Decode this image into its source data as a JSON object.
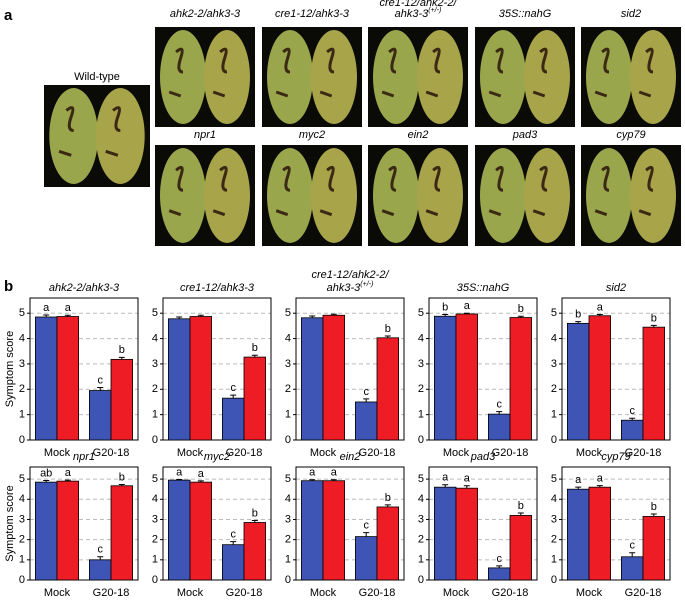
{
  "panel_a": {
    "label": "a",
    "wild_type": "Wild-type",
    "photos": [
      {
        "lines": [
          "ahk2-2/ahk3-3"
        ]
      },
      {
        "lines": [
          "cre1-12/ahk3-3"
        ]
      },
      {
        "lines": [
          "cre1-12/ahk2-2/",
          "ahk3-3"
        ],
        "sup": "(+/-)"
      },
      {
        "lines": [
          "35S::nahG"
        ]
      },
      {
        "lines": [
          "sid2"
        ]
      },
      {
        "lines": [
          "npr1"
        ]
      },
      {
        "lines": [
          "myc2"
        ]
      },
      {
        "lines": [
          "ein2"
        ]
      },
      {
        "lines": [
          "pad3"
        ]
      },
      {
        "lines": [
          "cyp79"
        ]
      }
    ]
  },
  "panel_b_label": "b",
  "chart_data": [
    {
      "type": "bar",
      "title": [
        "ahk2-2/ahk3-3"
      ],
      "ylabel": "Symptom score",
      "categories": [
        "Mock",
        "G20-18"
      ],
      "ylim": [
        0,
        5.6
      ],
      "yticks": [
        0,
        1,
        2,
        3,
        4,
        5
      ],
      "grid": true,
      "series": [
        {
          "color": "#3f55b5",
          "values": [
            4.85,
            1.95
          ],
          "errors": [
            0.08,
            0.12
          ],
          "letters": [
            "a",
            "c"
          ]
        },
        {
          "color": "#ee1c24",
          "values": [
            4.87,
            3.18
          ],
          "errors": [
            0.05,
            0.08
          ],
          "letters": [
            "a",
            "b"
          ]
        }
      ]
    },
    {
      "type": "bar",
      "title": [
        "cre1-12/ahk3-3"
      ],
      "categories": [
        "Mock",
        "G20-18"
      ],
      "ylim": [
        0,
        5.6
      ],
      "yticks": [
        0,
        1,
        2,
        3,
        4,
        5
      ],
      "grid": true,
      "series": [
        {
          "color": "#3f55b5",
          "values": [
            4.78,
            1.65
          ],
          "errors": [
            0.07,
            0.12
          ],
          "letters": [
            null,
            "c"
          ]
        },
        {
          "color": "#ee1c24",
          "values": [
            4.87,
            3.27
          ],
          "errors": [
            0.05,
            0.07
          ],
          "letters": [
            null,
            "b"
          ]
        }
      ]
    },
    {
      "type": "bar",
      "title": [
        "cre1-12/ahk2-2/",
        "ahk3-3"
      ],
      "title_sup": "(+/-)",
      "categories": [
        "Mock",
        "G20-18"
      ],
      "ylim": [
        0,
        5.6
      ],
      "yticks": [
        0,
        1,
        2,
        3,
        4,
        5
      ],
      "grid": true,
      "series": [
        {
          "color": "#3f55b5",
          "values": [
            4.82,
            1.5
          ],
          "errors": [
            0.07,
            0.12
          ],
          "letters": [
            null,
            "c"
          ]
        },
        {
          "color": "#ee1c24",
          "values": [
            4.92,
            4.03
          ],
          "errors": [
            0.04,
            0.07
          ],
          "letters": [
            null,
            "b"
          ]
        }
      ]
    },
    {
      "type": "bar",
      "title": [
        "35S::nahG"
      ],
      "categories": [
        "Mock",
        "G20-18"
      ],
      "ylim": [
        0,
        5.6
      ],
      "yticks": [
        0,
        1,
        2,
        3,
        4,
        5
      ],
      "grid": true,
      "series": [
        {
          "color": "#3f55b5",
          "values": [
            4.88,
            1.02
          ],
          "errors": [
            0.07,
            0.1
          ],
          "letters": [
            "b",
            "c"
          ]
        },
        {
          "color": "#ee1c24",
          "values": [
            4.97,
            4.83
          ],
          "errors": [
            0.03,
            0.05
          ],
          "letters": [
            "a",
            "b"
          ]
        }
      ]
    },
    {
      "type": "bar",
      "title": [
        "sid2"
      ],
      "categories": [
        "Mock",
        "G20-18"
      ],
      "ylim": [
        0,
        5.6
      ],
      "yticks": [
        0,
        1,
        2,
        3,
        4,
        5
      ],
      "grid": true,
      "series": [
        {
          "color": "#3f55b5",
          "values": [
            4.6,
            0.78
          ],
          "errors": [
            0.07,
            0.08
          ],
          "letters": [
            "b",
            "c"
          ]
        },
        {
          "color": "#ee1c24",
          "values": [
            4.9,
            4.45
          ],
          "errors": [
            0.05,
            0.07
          ],
          "letters": [
            "a",
            "b"
          ]
        }
      ]
    },
    {
      "type": "bar",
      "title": [
        "npr1"
      ],
      "ylabel": "Symptom score",
      "categories": [
        "Mock",
        "G20-18"
      ],
      "ylim": [
        0,
        5.6
      ],
      "yticks": [
        0,
        1,
        2,
        3,
        4,
        5
      ],
      "grid": true,
      "series": [
        {
          "color": "#3f55b5",
          "values": [
            4.85,
            1.0
          ],
          "errors": [
            0.08,
            0.15
          ],
          "letters": [
            "ab",
            "c"
          ]
        },
        {
          "color": "#ee1c24",
          "values": [
            4.9,
            4.67
          ],
          "errors": [
            0.05,
            0.06
          ],
          "letters": [
            "a",
            "b"
          ]
        }
      ]
    },
    {
      "type": "bar",
      "title": [
        "myc2"
      ],
      "categories": [
        "Mock",
        "G20-18"
      ],
      "ylim": [
        0,
        5.6
      ],
      "yticks": [
        0,
        1,
        2,
        3,
        4,
        5
      ],
      "grid": true,
      "series": [
        {
          "color": "#3f55b5",
          "values": [
            4.95,
            1.75
          ],
          "errors": [
            0.03,
            0.15
          ],
          "letters": [
            "a",
            "c"
          ]
        },
        {
          "color": "#ee1c24",
          "values": [
            4.85,
            2.85
          ],
          "errors": [
            0.06,
            0.1
          ],
          "letters": [
            "a",
            "b"
          ]
        }
      ]
    },
    {
      "type": "bar",
      "title": [
        "ein2"
      ],
      "categories": [
        "Mock",
        "G20-18"
      ],
      "ylim": [
        0,
        5.6
      ],
      "yticks": [
        0,
        1,
        2,
        3,
        4,
        5
      ],
      "grid": true,
      "series": [
        {
          "color": "#3f55b5",
          "values": [
            4.92,
            2.15
          ],
          "errors": [
            0.05,
            0.2
          ],
          "letters": [
            "a",
            "c"
          ]
        },
        {
          "color": "#ee1c24",
          "values": [
            4.92,
            3.62
          ],
          "errors": [
            0.05,
            0.1
          ],
          "letters": [
            "a",
            "b"
          ]
        }
      ]
    },
    {
      "type": "bar",
      "title": [
        "pad3"
      ],
      "categories": [
        "Mock",
        "G20-18"
      ],
      "ylim": [
        0,
        5.6
      ],
      "yticks": [
        0,
        1,
        2,
        3,
        4,
        5
      ],
      "grid": true,
      "series": [
        {
          "color": "#3f55b5",
          "values": [
            4.6,
            0.6
          ],
          "errors": [
            0.12,
            0.1
          ],
          "letters": [
            "a",
            "c"
          ]
        },
        {
          "color": "#ee1c24",
          "values": [
            4.55,
            3.2
          ],
          "errors": [
            0.12,
            0.12
          ],
          "letters": [
            "a",
            "b"
          ]
        }
      ]
    },
    {
      "type": "bar",
      "title": [
        "cyp79"
      ],
      "categories": [
        "Mock",
        "G20-18"
      ],
      "ylim": [
        0,
        5.6
      ],
      "yticks": [
        0,
        1,
        2,
        3,
        4,
        5
      ],
      "grid": true,
      "series": [
        {
          "color": "#3f55b5",
          "values": [
            4.5,
            1.15
          ],
          "errors": [
            0.1,
            0.2
          ],
          "letters": [
            "a",
            "c"
          ]
        },
        {
          "color": "#ee1c24",
          "values": [
            4.6,
            3.15
          ],
          "errors": [
            0.08,
            0.12
          ],
          "letters": [
            "a",
            "b"
          ]
        }
      ]
    }
  ]
}
